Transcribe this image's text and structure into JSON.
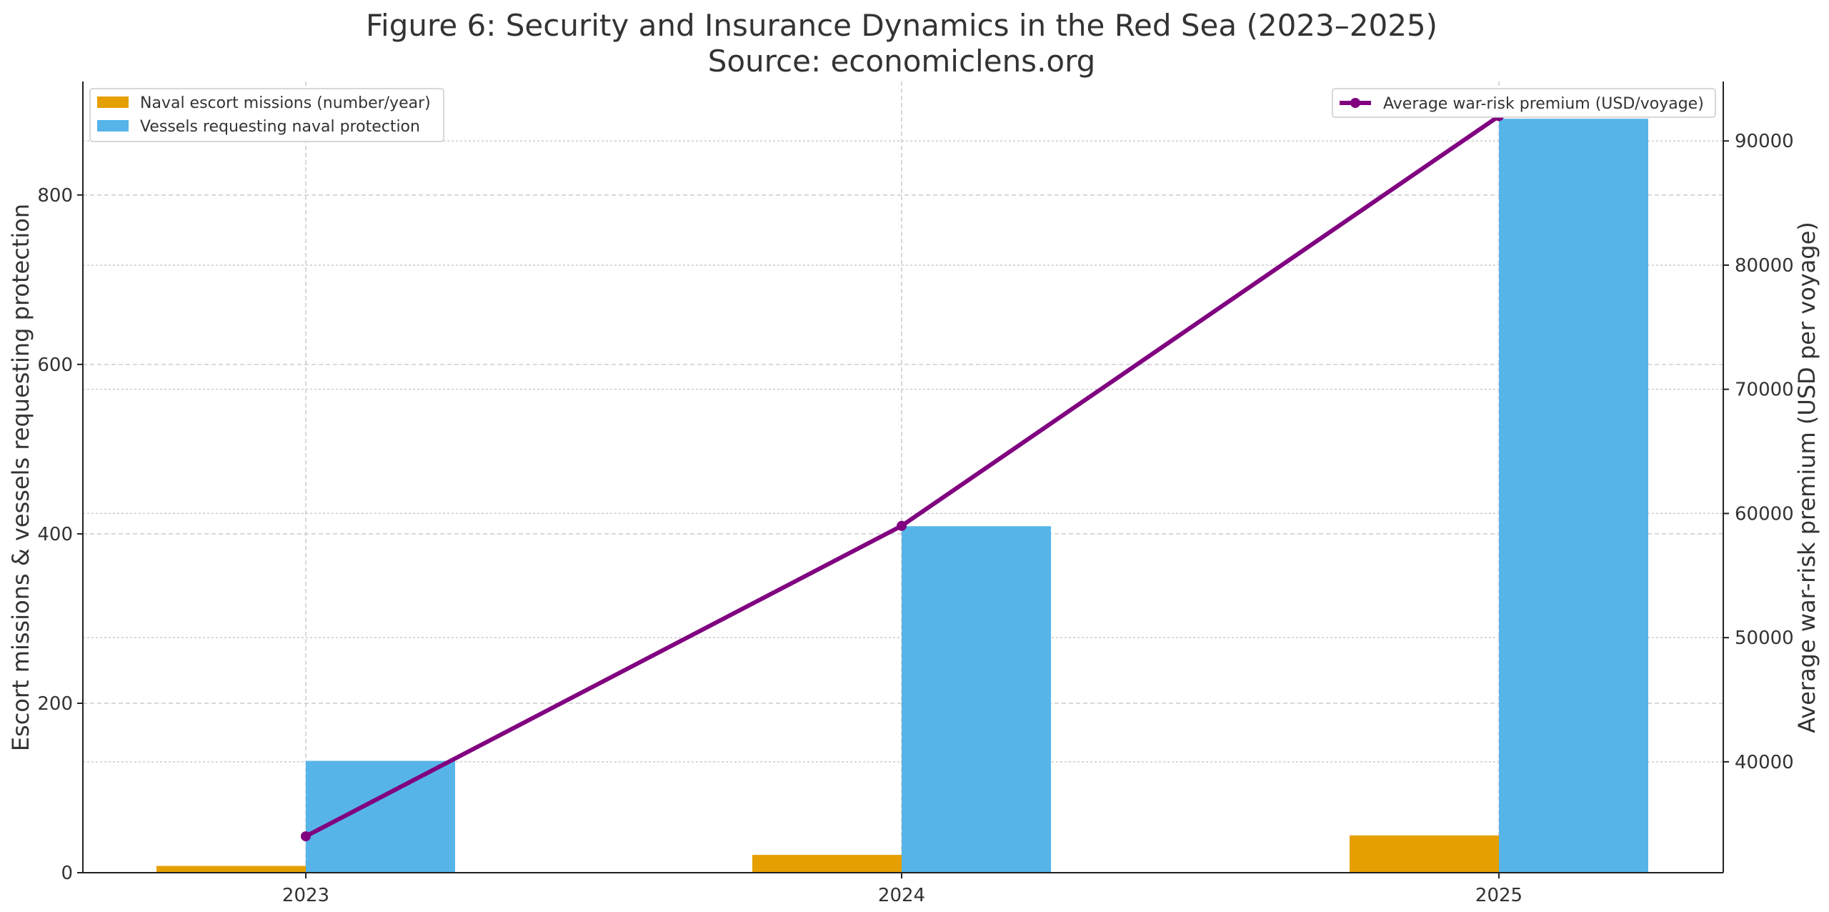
{
  "chart_data": {
    "type": "bar+line",
    "title": "Figure 6: Security and Insurance Dynamics in the Red Sea (2023–2025)",
    "subtitle": "Source: economiclens.org",
    "categories": [
      "2023",
      "2024",
      "2025"
    ],
    "ylabel_left": "Escort missions & vessels requesting protection",
    "ylabel_right": "Average war-risk premium (USD per voyage)",
    "ylim_left": [
      0,
      934
    ],
    "ylim_right": [
      31070,
      94790
    ],
    "yticks_left": [
      0,
      200,
      400,
      600,
      800
    ],
    "yticks_right": [
      40000,
      50000,
      60000,
      70000,
      80000,
      90000
    ],
    "grid": true,
    "series": [
      {
        "name": "Naval escort missions (number/year)",
        "type": "bar",
        "axis": "left",
        "color": "#E69F00",
        "values": [
          8,
          21,
          44
        ]
      },
      {
        "name": "Vessels requesting naval protection",
        "type": "bar",
        "axis": "left",
        "color": "#56B4E9",
        "values": [
          132,
          409,
          890
        ]
      },
      {
        "name": "Average war-risk premium (USD/voyage)",
        "type": "line",
        "axis": "right",
        "color": "#800080",
        "values": [
          34000,
          59000,
          92000
        ]
      }
    ],
    "legend_left_placement": "top-left",
    "legend_right_placement": "top-right"
  }
}
